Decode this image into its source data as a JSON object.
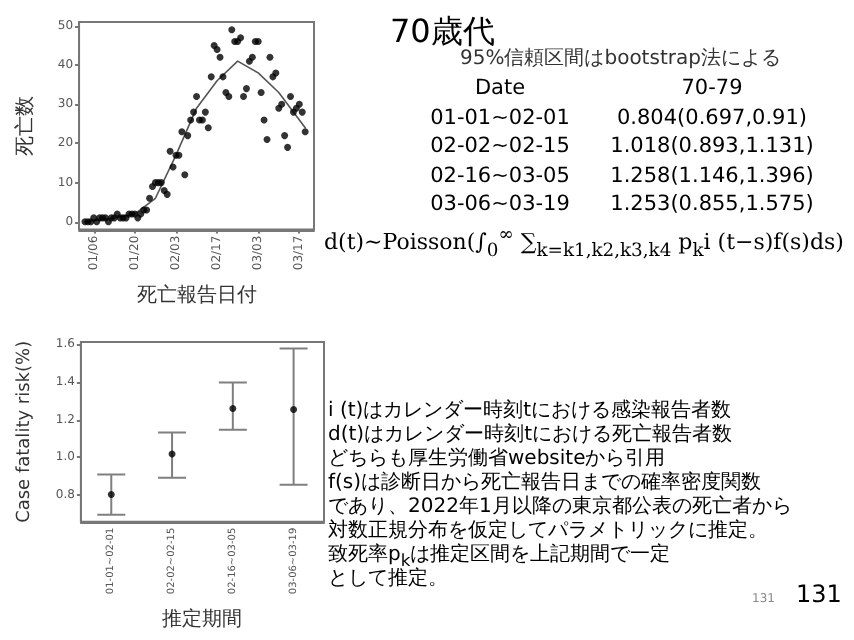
{
  "chart_data": [
    {
      "type": "scatter",
      "xlabel": "死亡報告日付",
      "ylabel": "死亡数",
      "grid": false,
      "marker": "circle",
      "xlim": [
        "--01-01",
        "--03-22"
      ],
      "ylim": [
        -2,
        51
      ],
      "yticks": [
        0,
        10,
        20,
        30,
        40,
        50
      ],
      "xticks": [
        {
          "value": "--01-06",
          "label": "01/06"
        },
        {
          "value": "--01-20",
          "label": "01/20"
        },
        {
          "value": "--02-03",
          "label": "02/03"
        },
        {
          "value": "--02-17",
          "label": "02/17"
        },
        {
          "value": "--03-03",
          "label": "03/03"
        },
        {
          "value": "--03-17",
          "label": "03/17"
        }
      ],
      "series": [
        {
          "type": "scatter",
          "color": "#000000",
          "x": [
            "--01-03",
            "--01-04",
            "--01-05",
            "--01-06",
            "--01-07",
            "--01-08",
            "--01-09",
            "--01-10",
            "--01-11",
            "--01-12",
            "--01-13",
            "--01-14",
            "--01-15",
            "--01-16",
            "--01-17",
            "--01-18",
            "--01-19",
            "--01-20",
            "--01-21",
            "--01-22",
            "--01-23",
            "--01-24",
            "--01-25",
            "--01-26",
            "--01-27",
            "--01-28",
            "--01-29",
            "--01-30",
            "--01-31",
            "--02-01",
            "--02-02",
            "--02-03",
            "--02-04",
            "--02-05",
            "--02-06",
            "--02-07",
            "--02-08",
            "--02-09",
            "--02-10",
            "--02-11",
            "--02-12",
            "--02-13",
            "--02-14",
            "--02-15",
            "--02-16",
            "--02-17",
            "--02-18",
            "--02-19",
            "--02-20",
            "--02-21",
            "--02-22",
            "--02-23",
            "--02-24",
            "--02-25",
            "--02-26",
            "--02-27",
            "--02-28",
            "--03-01",
            "--03-02",
            "--03-03",
            "--03-04",
            "--03-05",
            "--03-06",
            "--03-07",
            "--03-08",
            "--03-09",
            "--03-10",
            "--03-11",
            "--03-12",
            "--03-13",
            "--03-14",
            "--03-15",
            "--03-16",
            "--03-17",
            "--03-18",
            "--03-19"
          ],
          "values": [
            0,
            0,
            0,
            1,
            0,
            1,
            1,
            1,
            0,
            1,
            1,
            2,
            1,
            1,
            1,
            2,
            2,
            2,
            1,
            2,
            3,
            3,
            6,
            9,
            10,
            10,
            10,
            8,
            7,
            18,
            14,
            17,
            17,
            23,
            12,
            22,
            26,
            28,
            32,
            26,
            26,
            28,
            24,
            37,
            45,
            44,
            42,
            37,
            33,
            32,
            49,
            46,
            46,
            47,
            32,
            34,
            41,
            42,
            46,
            46,
            33,
            26,
            21,
            42,
            37,
            38,
            29,
            30,
            22,
            19,
            32,
            28,
            29,
            30,
            28,
            23
          ]
        },
        {
          "type": "line",
          "color": "#555555",
          "marker": "none",
          "line_style": "solid",
          "x": [
            "--01-03",
            "--01-13",
            "--01-20",
            "--01-27",
            "--02-03",
            "--02-10",
            "--02-17",
            "--02-24",
            "--03-03",
            "--03-10",
            "--03-19"
          ],
          "values": [
            0,
            1,
            2,
            6,
            17,
            29,
            36,
            41,
            38,
            33,
            24
          ]
        }
      ]
    },
    {
      "type": "other",
      "title": "70歳代",
      "subtitle": "95%信頼区間はbootstrap法による",
      "annotations": [
        "Date",
        "70-79",
        "01-01~02-01",
        "0.804(0.697,0.91)",
        "02-02~02-15",
        "1.018(0.893,1.131)",
        "02-16~03-05",
        "1.258(1.146,1.396)",
        "03-06~03-19",
        "1.253(0.855,1.575)",
        "d(t)~Poisson(∫$_{0}$$^{∞}$ ∑$_{k=k1,k2,k3,k4}$ p$_{k}$i (t−s)f(s)ds)",
        "i (t)はカレンダー時刻tにおける感染報告者数",
        "d(t)はカレンダー時刻tにおける死亡報告者数",
        "どちらも厚生労働省websiteから引用",
        " f(s)は診断日から死亡報告日までの確率密度関数",
        "であり、2022年1月以降の東京都公表の死亡者から",
        "対数正規分布を仮定してパラメトリックに推定。",
        "致死率p$_{k}$は推定区間を上記期間で一定",
        "として推定。",
        "131",
        "131"
      ]
    },
    {
      "type": "scatter",
      "xlabel": "推定期間",
      "ylabel": "Case fatality risk(%)",
      "grid": false,
      "marker": "circle",
      "categories": [
        "01-01~02-01",
        "02-02~02-15",
        "02-16~03-05",
        "03-06~03-19"
      ],
      "ylim": [
        0.66,
        1.61
      ],
      "yticks": [
        {
          "value": 0.8,
          "label": "0.8"
        },
        {
          "value": 1.0,
          "label": "1.0"
        },
        {
          "value": 1.2,
          "label": "1.2"
        },
        {
          "value": 1.4,
          "label": "1.4"
        },
        {
          "value": 1.6,
          "label": "1.6"
        }
      ],
      "series": [
        {
          "color": "#000000",
          "values": [
            0.804,
            1.018,
            1.258,
            1.253
          ],
          "errors": [
            [
              0.697,
              0.91
            ],
            [
              0.893,
              1.131
            ],
            [
              1.146,
              1.396
            ],
            [
              0.855,
              1.575
            ]
          ]
        }
      ]
    }
  ]
}
